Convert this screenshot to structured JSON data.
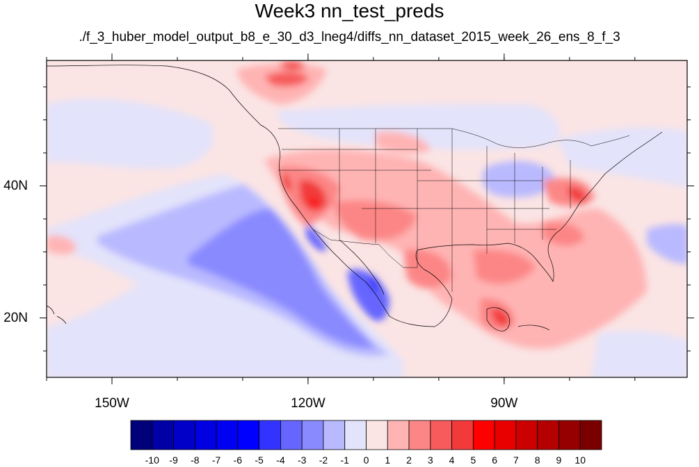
{
  "title": "Week3 nn_test_preds",
  "subtitle": "./f_3_huber_model_output_b8_e_30_d3_lneg4/diffs_nn_dataset_2015_week_26_ens_8_f_3",
  "map": {
    "projection": "cylindrical-equidistant",
    "lon_range": [
      -160,
      -62
    ],
    "lat_range": [
      11,
      59
    ],
    "lon_ticks": [
      {
        "value": -150,
        "label": "150W"
      },
      {
        "value": -120,
        "label": "120W"
      },
      {
        "value": -90,
        "label": "90W"
      }
    ],
    "lat_ticks": [
      {
        "value": 40,
        "label": "40N"
      },
      {
        "value": 20,
        "label": "20N"
      }
    ],
    "background_color": "#fbe4e4",
    "outline_color": "#000000"
  },
  "colorbar": {
    "labels": [
      "-10",
      "-9",
      "-8",
      "-7",
      "-6",
      "-5",
      "-4",
      "-3",
      "-2",
      "-1",
      "0",
      "1",
      "2",
      "3",
      "4",
      "5",
      "6",
      "7",
      "8",
      "9",
      "10"
    ],
    "colors": [
      "#00007a",
      "#0000a6",
      "#0000c8",
      "#0000e0",
      "#0000f2",
      "#0000ff",
      "#3333ff",
      "#6666ff",
      "#8a8aff",
      "#b9b9ff",
      "#e3e3fb",
      "#fbe4e4",
      "#ffb4b4",
      "#fc8686",
      "#f75b5b",
      "#f23a3a",
      "#ff0000",
      "#e80000",
      "#cc0000",
      "#b40000",
      "#960000",
      "#7a0000"
    ]
  }
}
